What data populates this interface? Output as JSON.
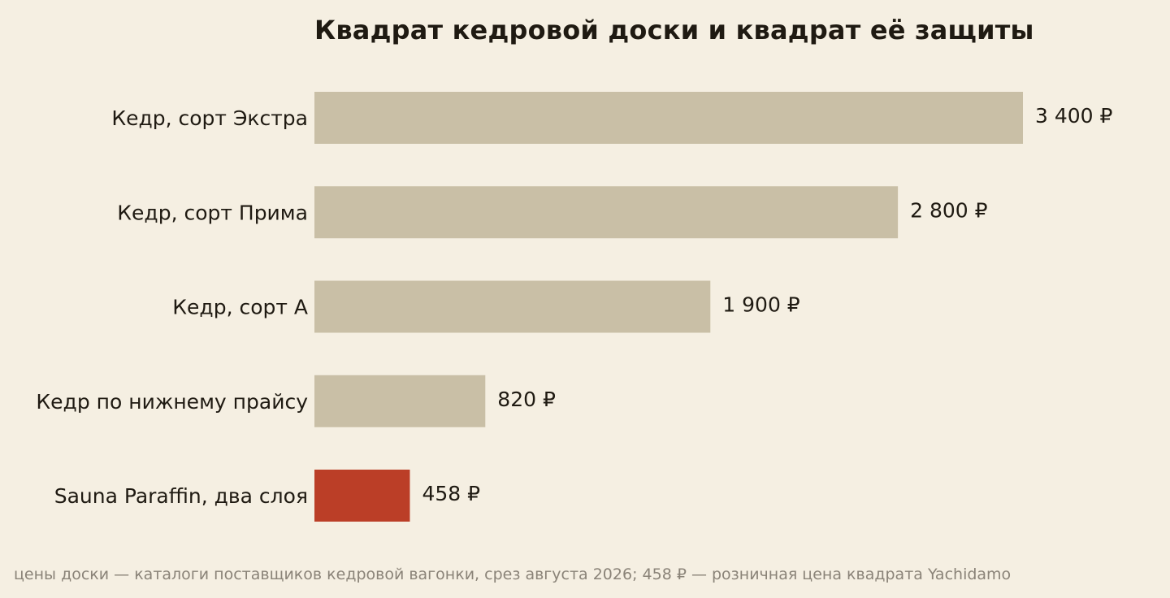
{
  "chart_data": {
    "type": "bar",
    "orientation": "horizontal",
    "title": "Квадрат кедровой доски и квадрат её защиты",
    "xlabel": "",
    "ylabel": "",
    "xlim": [
      0,
      3400
    ],
    "grid": false,
    "categories": [
      "Кедр, сорт Экстра",
      "Кедр, сорт Прима",
      "Кедр, сорт А",
      "Кедр по нижнему прайсу",
      "Sauna Paraffin, два слоя"
    ],
    "values": [
      3400,
      2800,
      1900,
      820,
      458
    ],
    "value_labels": [
      "3 400 ₽",
      "2 800 ₽",
      "1 900 ₽",
      "820 ₽",
      "458 ₽"
    ],
    "colors": [
      "#c9bfa6",
      "#c9bfa6",
      "#c9bfa6",
      "#c9bfa6",
      "#bb3e27"
    ]
  },
  "footnote": "цены доски — каталоги поставщиков кедровой вагонки, срез августа 2026; 458 ₽ — розничная цена квадрата Yachidamo"
}
